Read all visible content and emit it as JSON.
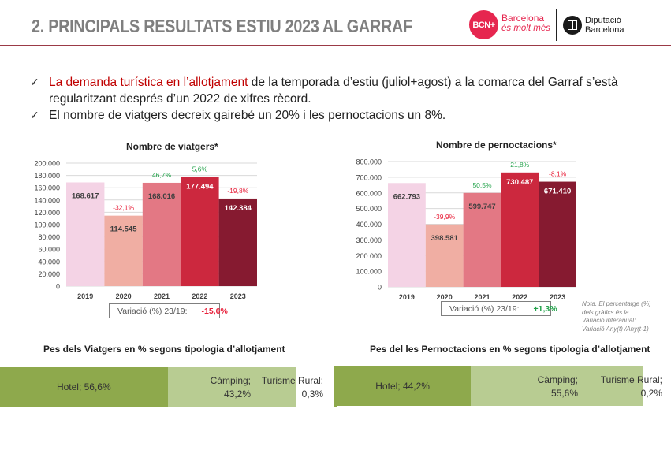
{
  "header": {
    "title": "2. PRINCIPALS RESULTATS ESTIU 2023 AL GARRAF",
    "logos": {
      "bcn_badge": "BCN+",
      "bcn_line1": "Barcelona",
      "bcn_line2": "és molt més",
      "dipu_line1": "Diputació",
      "dipu_line2": "Barcelona"
    }
  },
  "bullets": [
    {
      "icon": "check-icon",
      "glyph": "✓",
      "highlight": "La demanda turística en l’allotjament",
      "text": " de la temporada d’estiu (juliol+agost) a la comarca del Garraf s’està",
      "text2": "regularitzant després d’un 2022 de xifres rècord."
    },
    {
      "icon": "check-icon",
      "glyph": "✓",
      "text": "El nombre de viatgers decreix gairebé un 20% i les pernoctacions un 8%."
    }
  ],
  "colors": {
    "bar_2019": "#f4d3e5",
    "bar_2020": "#f0aea3",
    "bar_2021": "#e37884",
    "bar_2022": "#cc283e",
    "bar_2023": "#861a30",
    "positive": "#22a24a",
    "negative": "#e8203a",
    "hotel": "#8ea94c",
    "camping": "#b8cc92",
    "accent_red": "#c00000"
  },
  "chart_data": [
    {
      "type": "bar",
      "title": "Nombre de viatgers*",
      "categories": [
        "2019",
        "2020",
        "2021",
        "2022",
        "2023"
      ],
      "values": [
        168617,
        114545,
        168016,
        177494,
        142384
      ],
      "value_labels": [
        "168.617",
        "114.545",
        "168.016",
        "177.494",
        "142.384"
      ],
      "change_labels": [
        "",
        "-32,1%",
        "46,7%",
        "5,6%",
        "-19,8%"
      ],
      "change_values": [
        null,
        -32.1,
        46.7,
        5.6,
        -19.8
      ],
      "ylim": [
        0,
        200000
      ],
      "yticks": [
        0,
        20000,
        40000,
        60000,
        80000,
        100000,
        120000,
        140000,
        160000,
        180000,
        200000
      ],
      "ytick_labels": [
        "0",
        "20.000",
        "40.000",
        "60.000",
        "80.000",
        "100.000",
        "120.000",
        "140.000",
        "160.000",
        "180.000",
        "200.000"
      ],
      "grid": true,
      "xlabel": "",
      "ylabel": "",
      "variation_label": "Variació (%) 23/19:",
      "variation_value": "-15,6%",
      "variation_sign": "negative"
    },
    {
      "type": "bar",
      "title": "Nombre de pernoctacions*",
      "categories": [
        "2019",
        "2020",
        "2021",
        "2022",
        "2023"
      ],
      "values": [
        662793,
        398581,
        599747,
        730487,
        671410
      ],
      "value_labels": [
        "662.793",
        "398.581",
        "599.747",
        "730.487",
        "671.410"
      ],
      "change_labels": [
        "",
        "-39,9%",
        "50,5%",
        "21,8%",
        "-8,1%"
      ],
      "change_values": [
        null,
        -39.9,
        50.5,
        21.8,
        -8.1
      ],
      "ylim": [
        0,
        800000
      ],
      "yticks": [
        0,
        100000,
        200000,
        300000,
        400000,
        500000,
        600000,
        700000,
        800000
      ],
      "ytick_labels": [
        "0",
        "100.000",
        "200.000",
        "300.000",
        "400.000",
        "500.000",
        "600.000",
        "700.000",
        "800.000"
      ],
      "grid": true,
      "xlabel": "",
      "ylabel": "",
      "variation_label": "Variació (%) 23/19:",
      "variation_value": "+1,3%",
      "variation_sign": "positive"
    },
    {
      "type": "bar",
      "orientation": "horizontal-stacked",
      "title": "Pes dels Viatgers en % segons tipologia d’allotjament",
      "categories": [
        "Hotel",
        "Càmping",
        "Turisme Rural"
      ],
      "values": [
        56.6,
        43.2,
        0.3
      ],
      "labels": [
        "Hotel; 56,6%",
        "Càmping;",
        "43,2%",
        "Turisme Rural;",
        "0,3%"
      ]
    },
    {
      "type": "bar",
      "orientation": "horizontal-stacked",
      "title": "Pes del les Pernoctacions en % segons tipologia d’allotjament",
      "categories": [
        "Hotel",
        "Càmping",
        "Turisme Rural"
      ],
      "values": [
        44.2,
        55.6,
        0.2
      ],
      "labels": [
        "Hotel; 44,2%",
        "Càmping;",
        "55,6%",
        "Turisme Rural;",
        "0,2%"
      ]
    }
  ],
  "note": {
    "line1": "Nota. El percentatge (%)",
    "line2": "dels gràfics és la",
    "line3": "Variació interanual:",
    "line4": "Variació Any(t) /Any(t-1)"
  }
}
